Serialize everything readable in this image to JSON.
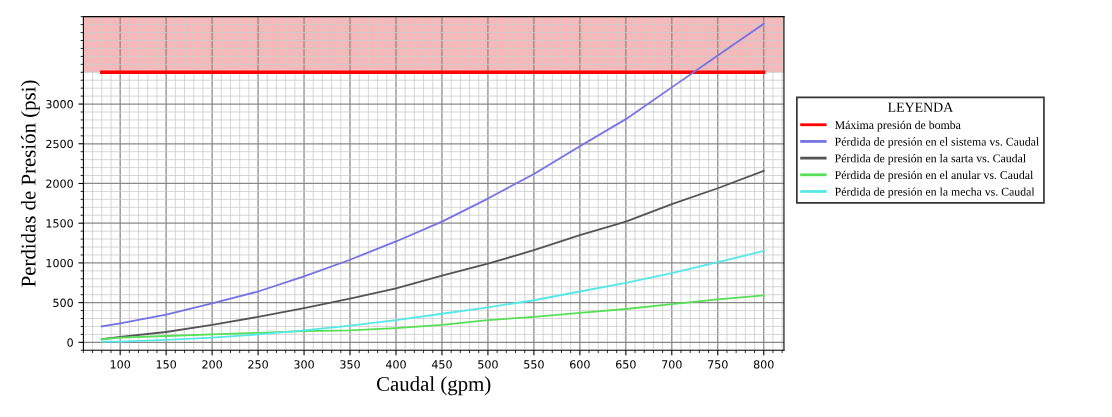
{
  "chart_data": {
    "type": "line",
    "xlabel": "Caudal (gpm)",
    "ylabel": "Perdidas de Presión (psi)",
    "legend_title": "LEYENDA",
    "legend": "right",
    "grid": true,
    "marker": "none",
    "line_style": "solid",
    "xlim": [
      60,
      822
    ],
    "ylim": [
      -100,
      4100
    ],
    "xticks": [
      100,
      150,
      200,
      250,
      300,
      350,
      400,
      450,
      500,
      550,
      600,
      650,
      700,
      750,
      800
    ],
    "yticks": [
      0,
      500,
      1000,
      1500,
      2000,
      2500,
      3000
    ],
    "bands": [
      {
        "axis": "y",
        "from": 3400,
        "to": 4100,
        "color": "#f4a6a6"
      }
    ],
    "series": [
      {
        "name": "Máxima presión de bomba",
        "color": "#ff0000",
        "x": [
          80,
          800
        ],
        "values": [
          3400,
          3400
        ]
      },
      {
        "name": "Pérdida de presión en el sistema vs. Caudal",
        "color": "#7373e6",
        "x": [
          80,
          100,
          150,
          200,
          250,
          300,
          350,
          400,
          450,
          500,
          550,
          600,
          650,
          700,
          750,
          800
        ],
        "values": [
          200,
          240,
          350,
          490,
          640,
          830,
          1040,
          1270,
          1520,
          1810,
          2120,
          2470,
          2810,
          3210,
          3610,
          4010
        ]
      },
      {
        "name": "Pérdida de presión en la sarta vs. Caudal",
        "color": "#555555",
        "x": [
          80,
          100,
          150,
          200,
          250,
          300,
          350,
          400,
          450,
          500,
          550,
          600,
          650,
          700,
          750,
          800
        ],
        "values": [
          40,
          70,
          130,
          220,
          320,
          430,
          550,
          680,
          840,
          990,
          1160,
          1350,
          1520,
          1740,
          1940,
          2160
        ]
      },
      {
        "name": "Pérdida de presión en el anular vs. Caudal",
        "color": "#55e055",
        "x": [
          80,
          100,
          150,
          200,
          250,
          300,
          350,
          400,
          450,
          500,
          550,
          600,
          650,
          700,
          750,
          800
        ],
        "values": [
          40,
          60,
          80,
          100,
          120,
          140,
          150,
          180,
          220,
          280,
          320,
          370,
          420,
          480,
          540,
          590
        ]
      },
      {
        "name": "Pérdida de presión en la mecha vs. Caudal",
        "color": "#55e8e8",
        "x": [
          80,
          100,
          150,
          200,
          250,
          300,
          350,
          400,
          450,
          500,
          550,
          600,
          650,
          700,
          750,
          800
        ],
        "values": [
          10,
          10,
          30,
          60,
          100,
          150,
          210,
          280,
          360,
          440,
          530,
          640,
          750,
          870,
          1010,
          1150
        ]
      }
    ]
  }
}
